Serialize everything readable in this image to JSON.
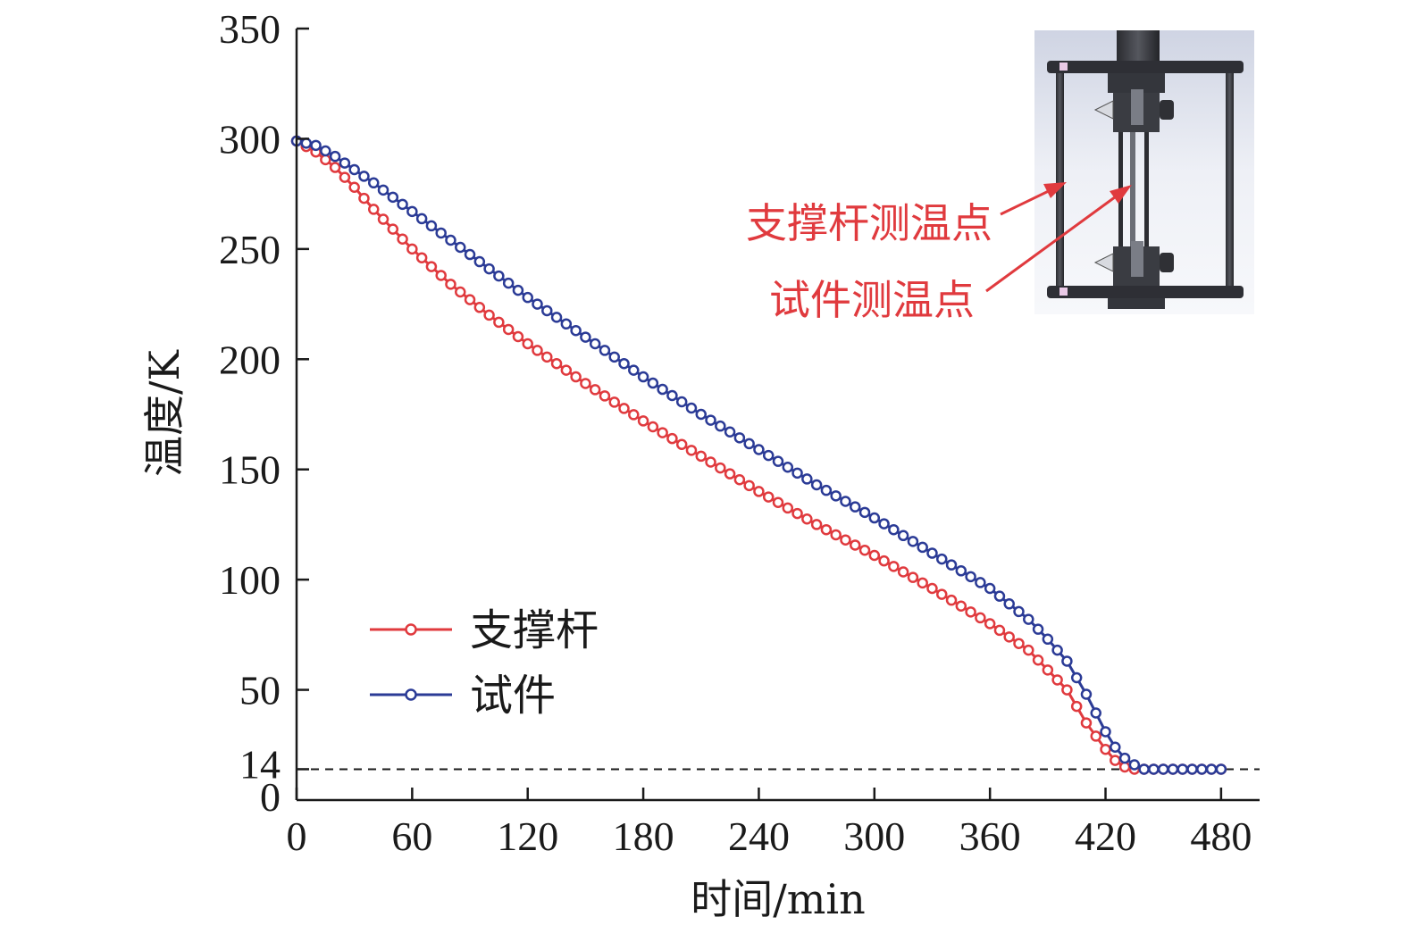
{
  "chart_data": {
    "type": "line",
    "xlabel": "时间/min",
    "ylabel": "温度/K",
    "xlim": [
      0,
      500
    ],
    "ylim": [
      0,
      350
    ],
    "xticks": [
      "0",
      "60",
      "120",
      "180",
      "240",
      "300",
      "360",
      "420",
      "480"
    ],
    "yticks": [
      "0",
      "14",
      "50",
      "100",
      "150",
      "200",
      "250",
      "300",
      "350"
    ],
    "reference_line": {
      "y": 14,
      "style": "dashed"
    },
    "legend_position": "bottom-left",
    "grid": false,
    "series": [
      {
        "name": "支撑杆",
        "color": "#e03a3e",
        "marker": "open-circle",
        "x": [
          0,
          10,
          20,
          30,
          40,
          60,
          80,
          100,
          120,
          150,
          180,
          210,
          240,
          270,
          300,
          330,
          360,
          380,
          390,
          400,
          410,
          420,
          425,
          430,
          435,
          440,
          445,
          450,
          460,
          470,
          480
        ],
        "y": [
          299,
          294,
          287,
          278,
          268,
          250,
          234,
          220,
          207,
          189,
          172,
          156,
          140,
          125,
          111,
          96,
          80,
          68,
          59,
          50,
          35,
          23,
          18,
          15,
          14,
          14,
          14,
          14,
          14,
          14,
          14
        ]
      },
      {
        "name": "试件",
        "color": "#2b3b96",
        "marker": "open-circle",
        "x": [
          0,
          10,
          20,
          30,
          40,
          60,
          80,
          100,
          120,
          150,
          180,
          210,
          240,
          270,
          300,
          330,
          360,
          380,
          390,
          400,
          410,
          420,
          425,
          430,
          435,
          440,
          445,
          450,
          460,
          470,
          480
        ],
        "y": [
          299,
          297,
          292,
          286,
          280,
          267,
          254,
          241,
          228,
          210,
          192,
          175,
          159,
          143,
          128,
          112,
          96,
          82,
          73,
          63,
          48,
          31,
          24,
          19,
          16,
          14,
          14,
          14,
          14,
          14,
          14
        ]
      }
    ]
  },
  "annotations": {
    "rod_point_label": "支撑杆测温点",
    "specimen_point_label": "试件测温点",
    "label_color": "#e03a3e"
  }
}
